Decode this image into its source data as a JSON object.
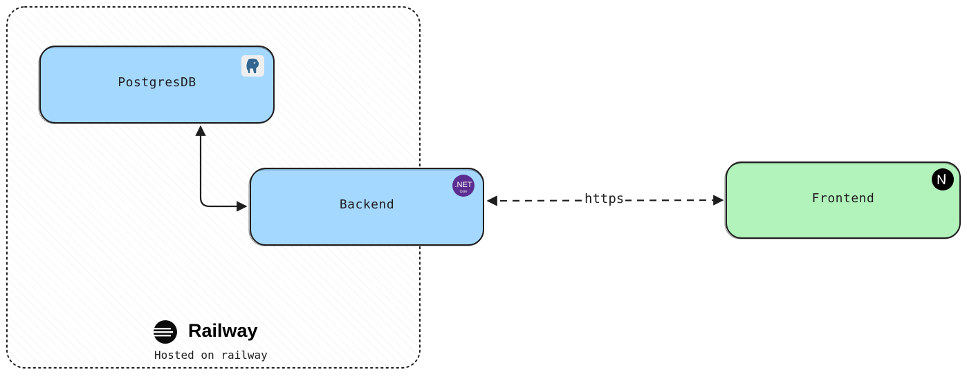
{
  "group": {
    "caption": "Hosted on railway",
    "brand": "Railway",
    "brand_icon": "railway-logo-icon"
  },
  "nodes": {
    "postgres": {
      "label": "PostgresDB",
      "icon": "postgresql-elephant-icon",
      "fill": "#a5d8ff"
    },
    "backend": {
      "label": "Backend",
      "icon": "dotnet-core-icon",
      "icon_text": ".NET",
      "icon_subtext": "Core",
      "icon_color": "#5c2d91",
      "fill": "#a5d8ff"
    },
    "frontend": {
      "label": "Frontend",
      "icon": "nextjs-icon",
      "icon_text": "N",
      "fill": "#b2f2bb"
    }
  },
  "edges": {
    "backend_postgres": {
      "direction": "bidirectional"
    },
    "backend_frontend": {
      "label": "https",
      "direction": "bidirectional",
      "style": "dashed"
    }
  },
  "colors": {
    "stroke": "#1e1e1e",
    "hatch": "#e8e8e8"
  }
}
